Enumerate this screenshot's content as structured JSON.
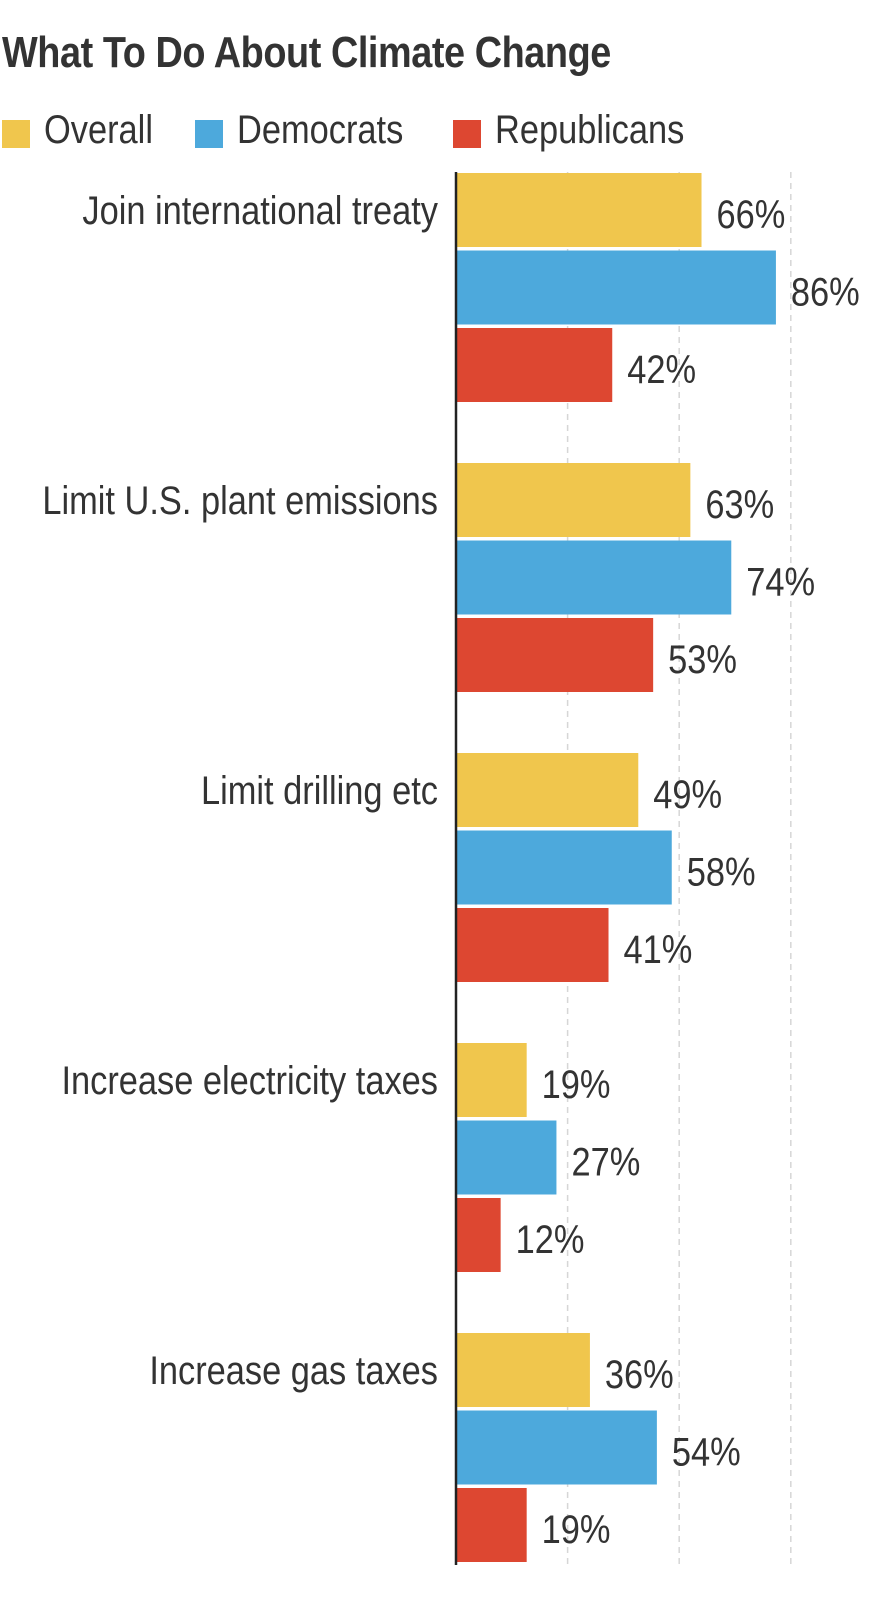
{
  "chart_data": {
    "type": "bar",
    "orientation": "horizontal",
    "title": "What To Do About Climate Change",
    "categories": [
      "Join international treaty",
      "Limit U.S. plant emissions",
      "Limit drilling etc",
      "Increase electricity taxes",
      "Increase gas taxes"
    ],
    "series": [
      {
        "name": "Overall",
        "color": "#F0C64D",
        "values": [
          66,
          63,
          49,
          19,
          36
        ]
      },
      {
        "name": "Democrats",
        "color": "#4DA9DC",
        "values": [
          86,
          74,
          58,
          27,
          54
        ]
      },
      {
        "name": "Republicans",
        "color": "#DD4731",
        "values": [
          42,
          53,
          41,
          12,
          19
        ]
      }
    ],
    "value_suffix": "%",
    "xlim": [
      0,
      100
    ],
    "grid": true,
    "legend_position": "top-left"
  }
}
